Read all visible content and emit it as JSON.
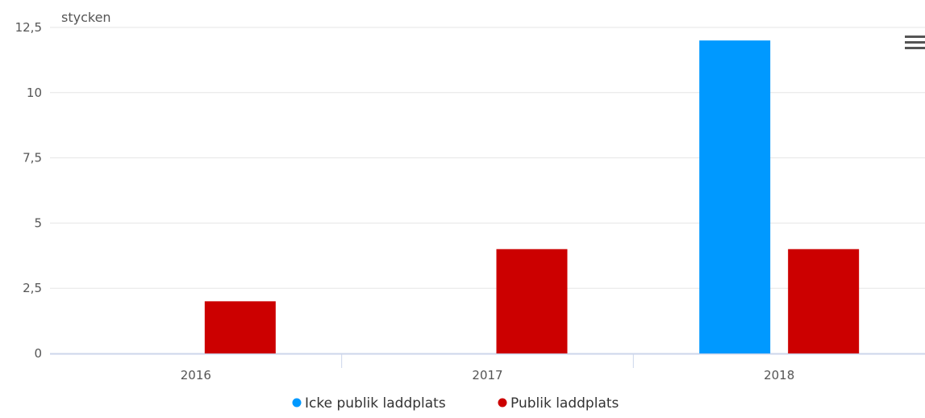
{
  "chart_data": {
    "type": "bar",
    "categories": [
      "2016",
      "2017",
      "2018"
    ],
    "series": [
      {
        "name": "Icke publik laddplats",
        "color": "#0099ff",
        "values": [
          0,
          0,
          12
        ]
      },
      {
        "name": "Publik laddplats",
        "color": "#cc0000",
        "values": [
          2,
          4,
          4
        ]
      }
    ],
    "ylabel": "stycken",
    "ylim": [
      0,
      12.5
    ],
    "yticks": [
      0,
      2.5,
      5,
      7.5,
      10,
      12.5
    ],
    "ytick_labels": [
      "0",
      "2,5",
      "5",
      "7,5",
      "10",
      "12,5"
    ],
    "grid": true,
    "legend": "bottom-center"
  },
  "menu_icon": "hamburger-menu-icon"
}
